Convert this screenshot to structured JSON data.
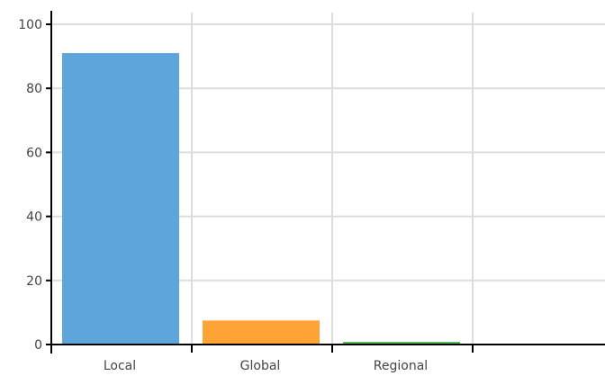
{
  "chart_data": {
    "type": "bar",
    "title": "",
    "xlabel": "",
    "ylabel": "",
    "categories": [
      "Local",
      "Global",
      "Regional",
      ""
    ],
    "values": [
      91,
      7.5,
      0.8,
      0
    ],
    "colors": [
      "#5ea5dc",
      "#ffa337",
      "#4caf50",
      "#cccccc"
    ],
    "ylim": [
      0,
      100
    ],
    "yticks": [
      0,
      20,
      40,
      60,
      80,
      100
    ],
    "grid": true,
    "legend": "none"
  }
}
